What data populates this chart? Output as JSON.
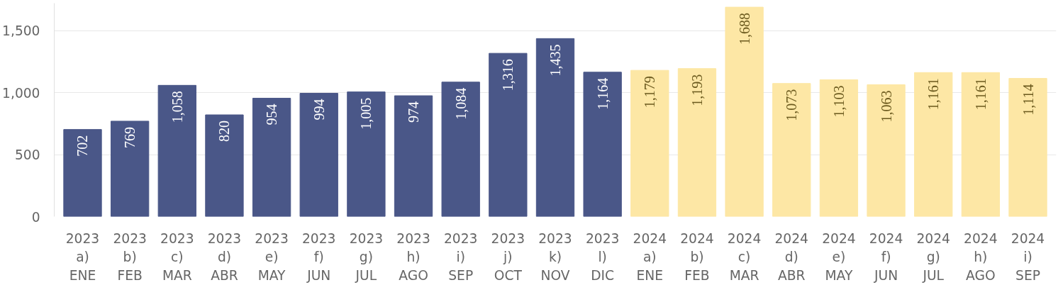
{
  "chart_data": {
    "type": "bar",
    "categories": [
      "2023\na)\nENE",
      "2023\nb)\nFEB",
      "2023\nc)\nMAR",
      "2023\nd)\nABR",
      "2023\ne)\nMAY",
      "2023\nf)\nJUN",
      "2023\ng)\nJUL",
      "2023\nh)\nAGO",
      "2023\ni)\nSEP",
      "2023\nj)\nOCT",
      "2023\nk)\nNOV",
      "2023\nl)\nDIC",
      "2024\na)\nENE",
      "2024\nb)\nFEB",
      "2024\nc)\nMAR",
      "2024\nd)\nABR",
      "2024\ne)\nMAY",
      "2024\nf)\nJUN",
      "2024\ng)\nJUL",
      "2024\nh)\nAGO",
      "2024\ni)\nSEP"
    ],
    "values": [
      702,
      769,
      1058,
      820,
      954,
      994,
      1005,
      974,
      1084,
      1316,
      1435,
      1164,
      1179,
      1193,
      1688,
      1073,
      1103,
      1063,
      1161,
      1161,
      1114
    ],
    "value_labels": [
      "702",
      "769",
      "1,058",
      "820",
      "954",
      "994",
      "1,005",
      "974",
      "1,084",
      "1,316",
      "1,435",
      "1,164",
      "1,179",
      "1,193",
      "1,688",
      "1,073",
      "1,103",
      "1,063",
      "1,161",
      "1,161",
      "1,114"
    ],
    "colors": [
      "#4a5788",
      "#4a5788",
      "#4a5788",
      "#4a5788",
      "#4a5788",
      "#4a5788",
      "#4a5788",
      "#4a5788",
      "#4a5788",
      "#4a5788",
      "#4a5788",
      "#4a5788",
      "#fde7a5",
      "#fde7a5",
      "#fde7a5",
      "#fde7a5",
      "#fde7a5",
      "#fde7a5",
      "#fde7a5",
      "#fde7a5",
      "#fde7a5"
    ],
    "ylim": [
      0,
      1720
    ],
    "yticks": [
      0,
      {
        "value": 500,
        "label": "500"
      },
      {
        "value": 1000,
        "label": "1,000"
      },
      {
        "value": 1500,
        "label": "1,500"
      }
    ],
    "grid": "y"
  }
}
